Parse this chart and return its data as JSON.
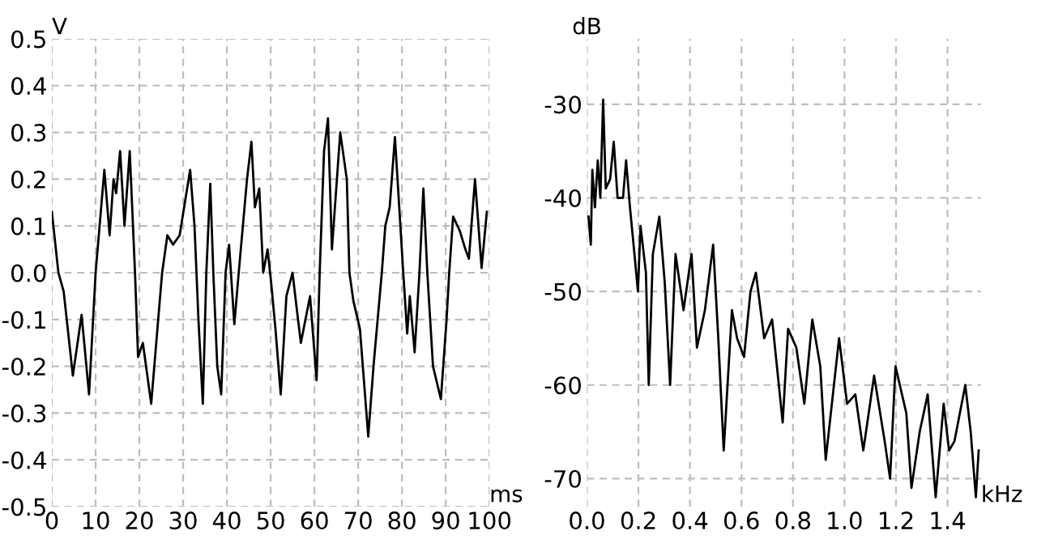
{
  "chart_data": [
    {
      "type": "line",
      "xlabel": "ms",
      "ylabel": "V",
      "grid": true,
      "line_style": "solid",
      "xlim": [
        0,
        100
      ],
      "ylim": [
        -0.5,
        0.5
      ],
      "xticks": [
        0,
        10,
        20,
        30,
        40,
        50,
        60,
        70,
        80,
        90,
        100
      ],
      "yticks": [
        {
          "value": -0.5,
          "label": "-0.5"
        },
        {
          "value": -0.4,
          "label": "-0.4"
        },
        {
          "value": -0.3,
          "label": "-0.3"
        },
        {
          "value": -0.2,
          "label": "-0.2"
        },
        {
          "value": -0.1,
          "label": "-0.1"
        },
        {
          "value": 0,
          "label": "0.0"
        },
        {
          "value": 0.1,
          "label": "0.1"
        },
        {
          "value": 0.2,
          "label": "0.2"
        },
        {
          "value": 0.3,
          "label": "0.3"
        },
        {
          "value": 0.4,
          "label": "0.4"
        },
        {
          "value": 0.5,
          "label": "0.5"
        }
      ],
      "x": [
        0,
        1.5,
        2.7,
        4.8,
        6.8,
        8.5,
        10,
        12,
        13.2,
        14.1,
        14.7,
        15.6,
        16.6,
        17.8,
        19,
        19.7,
        20.8,
        22.7,
        24.3,
        25.2,
        26.4,
        27.7,
        29.2,
        31.6,
        32.6,
        33.5,
        34.5,
        35.3,
        36.2,
        36.9,
        37.8,
        38.7,
        39.7,
        40.5,
        41.7,
        42.7,
        44.6,
        45.6,
        46.4,
        47.4,
        48.3,
        49.3,
        50.1,
        51.1,
        52.3,
        53.6,
        55,
        56,
        56.9,
        59,
        60.5,
        61.2,
        62.2,
        63.1,
        64,
        65.9,
        67.4,
        68,
        68.9,
        70.4,
        72.3,
        73.5,
        75.4,
        76.2,
        77.2,
        78.4,
        80.3,
        81.2,
        81.8,
        82.9,
        84,
        84.9,
        85.8,
        87.1,
        88.9,
        90.2,
        90.8,
        91.7,
        93.2,
        94.5,
        95.3,
        96.7,
        98.2,
        99.4
      ],
      "series": [
        {
          "color": "#000000",
          "values": [
            0.13,
            0,
            -0.04,
            -0.22,
            -0.09,
            -0.26,
            0,
            0.22,
            0.08,
            0.2,
            0.17,
            0.26,
            0.1,
            0.26,
            0,
            -0.18,
            -0.15,
            -0.28,
            -0.1,
            0,
            0.08,
            0.06,
            0.08,
            0.22,
            0.1,
            -0.1,
            -0.28,
            0,
            0.19,
            0,
            -0.2,
            -0.26,
            0,
            0.06,
            -0.11,
            0,
            0.2,
            0.28,
            0.14,
            0.18,
            0,
            0.05,
            -0.02,
            -0.12,
            -0.26,
            -0.05,
            0,
            -0.08,
            -0.15,
            -0.05,
            -0.23,
            0,
            0.26,
            0.33,
            0.05,
            0.3,
            0.2,
            0,
            -0.06,
            -0.12,
            -0.35,
            -0.2,
            0,
            0.1,
            0.14,
            0.29,
            0,
            -0.13,
            -0.05,
            -0.17,
            0,
            0.18,
            0,
            -0.2,
            -0.27,
            -0.1,
            0,
            0.12,
            0.09,
            0.05,
            0.03,
            0.2,
            0.01,
            0.13
          ]
        }
      ]
    },
    {
      "type": "line",
      "xlabel": "kHz",
      "ylabel": "dB",
      "grid": true,
      "line_style": "solid",
      "xlim": [
        0,
        1.53
      ],
      "ylim": [
        -73,
        -23
      ],
      "xticks": [
        {
          "value": 0,
          "label": "0.0"
        },
        {
          "value": 0.2,
          "label": "0.2"
        },
        {
          "value": 0.4,
          "label": "0.4"
        },
        {
          "value": 0.6,
          "label": "0.6"
        },
        {
          "value": 0.8,
          "label": "0.8"
        },
        {
          "value": 1.0,
          "label": "1.0"
        },
        {
          "value": 1.2,
          "label": "1.2"
        },
        {
          "value": 1.4,
          "label": "1.4"
        }
      ],
      "yticks": [
        {
          "value": -70,
          "label": "-70"
        },
        {
          "value": -60,
          "label": "-60"
        },
        {
          "value": -50,
          "label": "-50"
        },
        {
          "value": -40,
          "label": "-40"
        },
        {
          "value": -30,
          "label": "-30"
        }
      ],
      "x": [
        0.006,
        0.015,
        0.021,
        0.031,
        0.042,
        0.052,
        0.063,
        0.073,
        0.09,
        0.104,
        0.119,
        0.14,
        0.152,
        0.167,
        0.181,
        0.198,
        0.208,
        0.229,
        0.24,
        0.256,
        0.281,
        0.302,
        0.323,
        0.344,
        0.375,
        0.406,
        0.427,
        0.458,
        0.49,
        0.51,
        0.531,
        0.563,
        0.583,
        0.61,
        0.635,
        0.656,
        0.688,
        0.719,
        0.76,
        0.781,
        0.813,
        0.844,
        0.875,
        0.906,
        0.927,
        0.979,
        1.01,
        1.042,
        1.073,
        1.115,
        1.156,
        1.177,
        1.198,
        1.24,
        1.26,
        1.292,
        1.323,
        1.354,
        1.385,
        1.406,
        1.427,
        1.469,
        1.49,
        1.51,
        1.521
      ],
      "series": [
        {
          "color": "#000000",
          "values": [
            -42,
            -45,
            -37,
            -41,
            -36,
            -40,
            -29.5,
            -39,
            -38,
            -34,
            -40,
            -40,
            -36,
            -41,
            -45,
            -50,
            -43,
            -48,
            -60,
            -46,
            -42,
            -49,
            -60,
            -46,
            -52,
            -46,
            -56,
            -52,
            -45,
            -55,
            -67,
            -52,
            -55,
            -57,
            -50,
            -48,
            -55,
            -53,
            -64,
            -54,
            -56,
            -62,
            -53,
            -58,
            -68,
            -55,
            -62,
            -61,
            -67,
            -59,
            -66,
            -70,
            -58,
            -63,
            -71,
            -65,
            -61,
            -72,
            -62,
            -67,
            -66,
            -60,
            -65,
            -72,
            -67
          ]
        }
      ]
    }
  ]
}
